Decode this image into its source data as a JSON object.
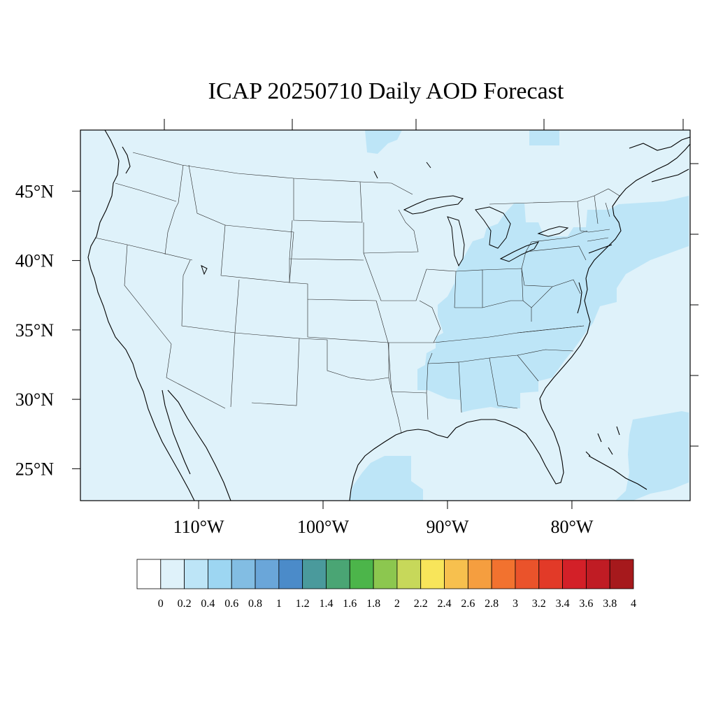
{
  "title": "ICAP 20250710 Daily AOD Forecast",
  "map": {
    "projection": "lat-lon",
    "lon_range": [
      -119.5,
      -70.5
    ],
    "lat_range": [
      22.7,
      49.4
    ],
    "lat_labels": [
      "45°N",
      "40°N",
      "35°N",
      "30°N",
      "25°N"
    ],
    "lat_values": [
      45,
      40,
      35,
      30,
      25
    ],
    "lon_labels": [
      "110°W",
      "100°W",
      "90°W",
      "80°W"
    ],
    "lon_values": [
      -110,
      -100,
      -90,
      -80
    ],
    "background_color": "#dff2fa",
    "plume_color": "#bde5f7",
    "outline_color": "#000000"
  },
  "colorbar": {
    "labels": [
      "0",
      "0.2",
      "0.4",
      "0.6",
      "0.8",
      "1",
      "1.2",
      "1.4",
      "1.6",
      "1.8",
      "2",
      "2.2",
      "2.4",
      "2.6",
      "2.8",
      "3",
      "3.2",
      "3.4",
      "3.6",
      "3.8",
      "4"
    ],
    "colors": [
      "#ffffff",
      "#dff2fa",
      "#bde5f7",
      "#9dd6f2",
      "#82bde3",
      "#6aa6d9",
      "#4b8bc9",
      "#4a9a9c",
      "#4aa574",
      "#4cb54a",
      "#8cc74f",
      "#c7d85a",
      "#f8e55a",
      "#f7c04e",
      "#f59e3f",
      "#f2722f",
      "#ea532b",
      "#e23a28",
      "#d32028",
      "#c01c24",
      "#a6191c"
    ]
  }
}
